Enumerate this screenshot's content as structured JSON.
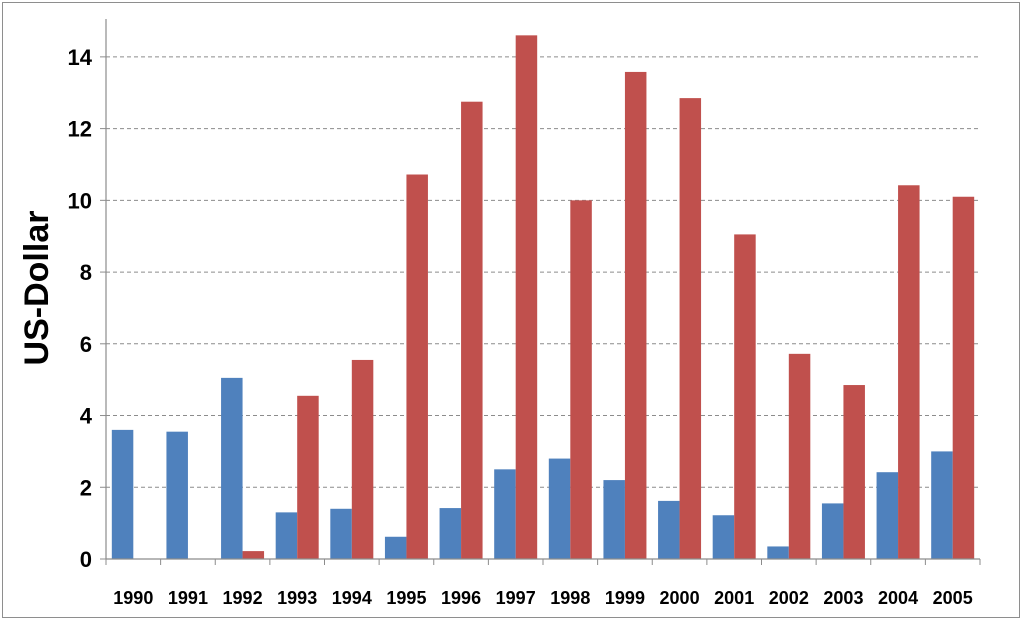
{
  "chart_data": {
    "type": "bar",
    "title": "",
    "xlabel": "",
    "ylabel": "US-Dollar",
    "ylim": [
      0,
      15
    ],
    "yticks": [
      0,
      2,
      4,
      6,
      8,
      10,
      12,
      14
    ],
    "grid": "horizontal dashed",
    "legend": "none",
    "categories": [
      "1990",
      "1991",
      "1992",
      "1993",
      "1994",
      "1995",
      "1996",
      "1997",
      "1998",
      "1999",
      "2000",
      "2001",
      "2002",
      "2003",
      "2004",
      "2005"
    ],
    "series": [
      {
        "color": "#4f81bd",
        "values": [
          3.6,
          3.55,
          5.05,
          1.3,
          1.4,
          0.62,
          1.42,
          2.5,
          2.8,
          2.2,
          1.62,
          1.22,
          0.35,
          1.55,
          2.42,
          3.0
        ]
      },
      {
        "color": "#c0504d",
        "values": [
          0,
          0,
          0.22,
          4.55,
          5.55,
          10.72,
          12.75,
          14.6,
          10.0,
          13.58,
          12.85,
          9.05,
          5.72,
          4.85,
          10.42,
          10.1
        ]
      }
    ]
  }
}
